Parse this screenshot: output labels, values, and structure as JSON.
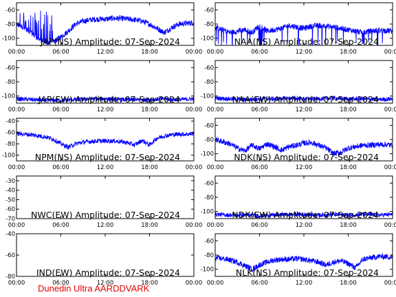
{
  "footer": "Dunedin Ultra AARDDVARK",
  "line_color": "#0000ff",
  "footer_color": "#e00000",
  "chart_data": [
    {
      "id": "p0",
      "type": "line",
      "title": "JAP(NS) Amplitude: 07-Sep-2024",
      "ylim": [
        -110,
        -50
      ],
      "yticks": [
        -60,
        -80,
        -100
      ],
      "x_ticks": [
        "00:00",
        "06:00",
        "12:00",
        "18:00",
        "00:00"
      ],
      "x_hours": [
        0,
        6,
        12,
        18,
        24
      ],
      "series": [
        {
          "x": [
            0,
            1,
            2,
            3,
            4,
            5,
            6,
            7,
            8,
            9,
            10,
            11,
            12,
            13,
            14,
            15,
            16,
            17,
            18,
            19,
            20,
            21,
            22,
            23,
            24
          ],
          "y": [
            -80,
            -85,
            -92,
            -102,
            -106,
            -105,
            -98,
            -90,
            -80,
            -76,
            -74,
            -73,
            -73,
            -72,
            -72,
            -73,
            -74,
            -76,
            -80,
            -86,
            -92,
            -85,
            -80,
            -79,
            -78
          ]
        }
      ]
    },
    {
      "id": "p1",
      "type": "line",
      "title": "NAA(NS) Amplitude: 07-Sep-2024",
      "ylim": [
        -110,
        -50
      ],
      "yticks": [
        -60,
        -80,
        -100
      ],
      "x_ticks": [
        "00:00",
        "06:00",
        "12:00",
        "18:00",
        "00:00"
      ],
      "x_hours": [
        0,
        6,
        12,
        18,
        24
      ],
      "series": [
        {
          "x": [
            0,
            1,
            2,
            3,
            4,
            5,
            6,
            7,
            8,
            9,
            10,
            11,
            12,
            13,
            14,
            15,
            16,
            17,
            18,
            19,
            20,
            21,
            22,
            23,
            24
          ],
          "y": [
            -85,
            -88,
            -92,
            -90,
            -88,
            -92,
            -82,
            -90,
            -88,
            -86,
            -82,
            -84,
            -86,
            -83,
            -82,
            -83,
            -84,
            -86,
            -88,
            -90,
            -92,
            -90,
            -89,
            -89,
            -90
          ]
        }
      ]
    },
    {
      "id": "p2",
      "type": "line",
      "title": "JAP(EW) Amplitude: 07-Sep-2024",
      "ylim": [
        -110,
        -50
      ],
      "yticks": [
        -60,
        -80,
        -100
      ],
      "x_ticks": [
        "00:00",
        "06:00",
        "12:00",
        "18:00",
        "00:00"
      ],
      "x_hours": [
        0,
        6,
        12,
        18,
        24
      ],
      "series": [
        {
          "x": [
            0,
            2,
            4,
            6,
            8,
            10,
            12,
            14,
            16,
            18,
            20,
            22,
            24
          ],
          "y": [
            -104,
            -105,
            -106,
            -106,
            -105,
            -104,
            -104,
            -105,
            -105,
            -105,
            -104,
            -105,
            -104
          ]
        }
      ]
    },
    {
      "id": "p3",
      "type": "line",
      "title": "NAA(EW) Amplitude: 07-Sep-2024",
      "ylim": [
        -110,
        -50
      ],
      "yticks": [
        -60,
        -80,
        -100
      ],
      "x_ticks": [
        "00:00",
        "06:00",
        "12:00",
        "18:00",
        "00:00"
      ],
      "x_hours": [
        0,
        6,
        12,
        18,
        24
      ],
      "series": [
        {
          "x": [
            0,
            2,
            4,
            6,
            8,
            10,
            12,
            14,
            16,
            18,
            20,
            22,
            24
          ],
          "y": [
            -103,
            -104,
            -105,
            -104,
            -104,
            -103,
            -104,
            -104,
            -103,
            -104,
            -104,
            -105,
            -104
          ]
        }
      ]
    },
    {
      "id": "p4",
      "type": "line",
      "title": "NPM(NS) Amplitude: 07-Sep-2024",
      "ylim": [
        -110,
        -35
      ],
      "yticks": [
        -40,
        -60,
        -80,
        -100
      ],
      "x_ticks": [
        "00:00",
        "06:00",
        "12:00",
        "18:00",
        "00:00"
      ],
      "x_hours": [
        0,
        6,
        12,
        18,
        24
      ],
      "series": [
        {
          "x": [
            0,
            1,
            2,
            3,
            4,
            5,
            6,
            7,
            8,
            9,
            10,
            11,
            12,
            13,
            14,
            15,
            16,
            17,
            18,
            19,
            20,
            21,
            22,
            23,
            24
          ],
          "y": [
            -62,
            -63,
            -64,
            -66,
            -68,
            -72,
            -80,
            -86,
            -80,
            -77,
            -76,
            -75,
            -75,
            -75,
            -76,
            -78,
            -82,
            -74,
            -82,
            -70,
            -66,
            -64,
            -63,
            -63,
            -62
          ]
        }
      ]
    },
    {
      "id": "p5",
      "type": "line",
      "title": "NDK(NS) Amplitude: 07-Sep-2024",
      "ylim": [
        -110,
        -50
      ],
      "yticks": [
        -60,
        -80,
        -100
      ],
      "x_ticks": [
        "00:00",
        "06:00",
        "12:00",
        "18:00",
        "00:00"
      ],
      "x_hours": [
        0,
        6,
        12,
        18,
        24
      ],
      "series": [
        {
          "x": [
            0,
            1,
            2,
            3,
            4,
            5,
            6,
            7,
            8,
            9,
            10,
            11,
            12,
            13,
            14,
            15,
            16,
            17,
            18,
            19,
            20,
            21,
            22,
            23,
            24
          ],
          "y": [
            -80,
            -83,
            -86,
            -92,
            -96,
            -88,
            -93,
            -86,
            -90,
            -95,
            -90,
            -88,
            -85,
            -84,
            -88,
            -92,
            -100,
            -98,
            -92,
            -90,
            -88,
            -88,
            -87,
            -87,
            -88
          ]
        }
      ]
    },
    {
      "id": "p6",
      "type": "line",
      "title": "NWC(EW) Amplitude: 07-Sep-2024",
      "ylim": [
        -70,
        -25
      ],
      "yticks": [
        -30,
        -40,
        -50,
        -60,
        -70
      ],
      "x_ticks": [
        "00:00",
        "06:00",
        "12:00",
        "18:00",
        "00:00"
      ],
      "x_hours": [
        0,
        6,
        12,
        18,
        24
      ],
      "series": [
        {
          "x": [],
          "y": []
        }
      ]
    },
    {
      "id": "p7",
      "type": "line",
      "title": "NDK(EW) Amplitude: 07-Sep-2024",
      "ylim": [
        -110,
        -50
      ],
      "yticks": [
        -60,
        -80,
        -100
      ],
      "x_ticks": [
        "00:00",
        "06:00",
        "12:00",
        "18:00",
        "00:00"
      ],
      "x_hours": [
        0,
        6,
        12,
        18,
        24
      ],
      "series": [
        {
          "x": [
            0,
            2,
            4,
            6,
            8,
            10,
            12,
            14,
            16,
            18,
            20,
            22,
            24
          ],
          "y": [
            -104,
            -105,
            -105,
            -106,
            -105,
            -104,
            -104,
            -105,
            -104,
            -105,
            -104,
            -105,
            -104
          ]
        }
      ]
    },
    {
      "id": "p8",
      "type": "line",
      "title": "IND(EW) Amplitude: 07-Sep-2024",
      "ylim": [
        -80,
        -40
      ],
      "yticks": [
        -40,
        -60,
        -80
      ],
      "x_ticks": [
        "00:00",
        "06:00",
        "12:00",
        "18:00",
        "00:00"
      ],
      "x_hours": [
        0,
        6,
        12,
        18,
        24
      ],
      "series": [
        {
          "x": [],
          "y": []
        }
      ]
    },
    {
      "id": "p9",
      "type": "line",
      "title": "NLK(NS) Amplitude: 07-Sep-2024",
      "ylim": [
        -110,
        -50
      ],
      "yticks": [
        -60,
        -80,
        -100
      ],
      "x_ticks": [
        "00:00",
        "06:00",
        "12:00",
        "18:00",
        "00:00"
      ],
      "x_hours": [
        0,
        6,
        12,
        18,
        24
      ],
      "series": [
        {
          "x": [
            0,
            1,
            2,
            3,
            4,
            5,
            6,
            7,
            8,
            9,
            10,
            11,
            12,
            13,
            14,
            15,
            16,
            17,
            18,
            19,
            20,
            21,
            22,
            23,
            24
          ],
          "y": [
            -84,
            -85,
            -87,
            -90,
            -95,
            -100,
            -94,
            -90,
            -87,
            -86,
            -86,
            -85,
            -86,
            -88,
            -90,
            -94,
            -90,
            -88,
            -92,
            -98,
            -86,
            -84,
            -82,
            -82,
            -83
          ]
        }
      ]
    }
  ]
}
